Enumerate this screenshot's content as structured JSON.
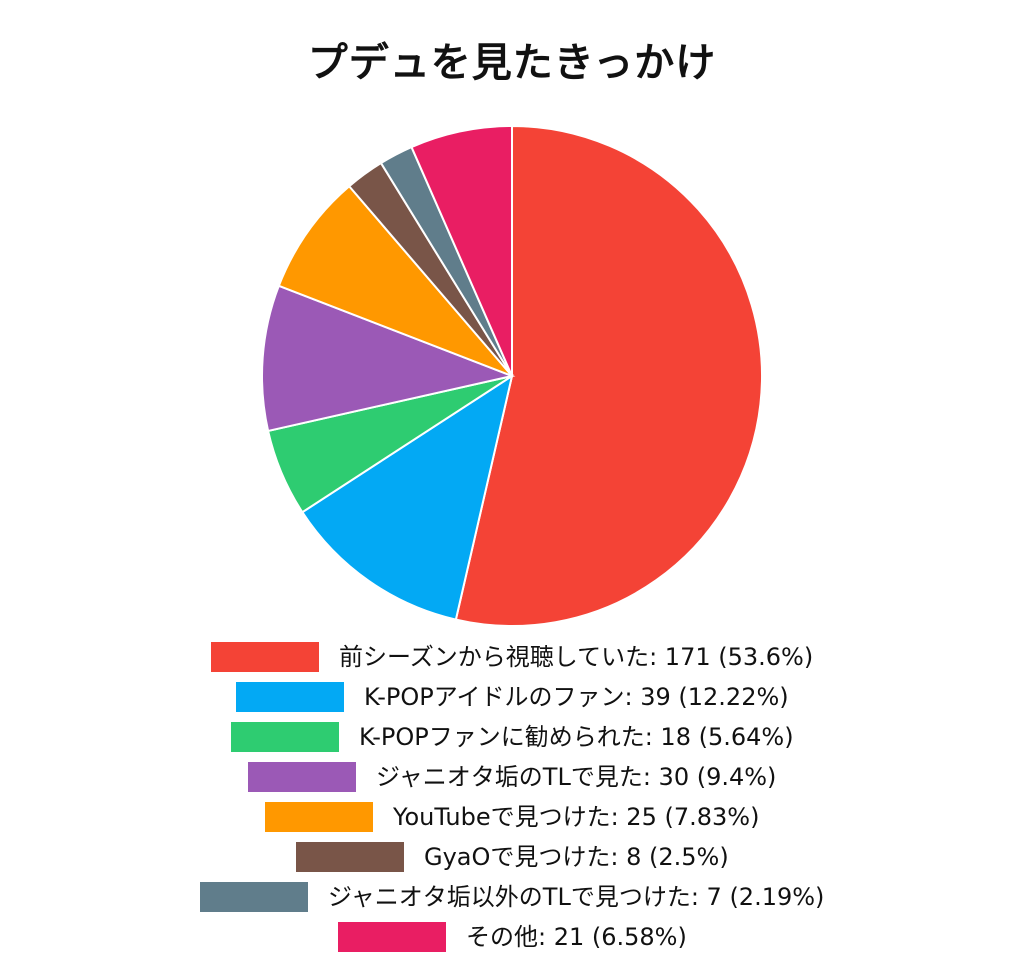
{
  "chart_data": {
    "type": "pie",
    "title": "プデュを見たきっかけ",
    "slices": [
      {
        "label": "前シーズンから視聴していた",
        "value": 171,
        "percent": "53.6%",
        "color": "#f44336",
        "legend_text": "前シーズンから視聴していた: 171 (53.6%)"
      },
      {
        "label": "K-POPアイドルのファン",
        "value": 39,
        "percent": "12.22%",
        "color": "#03a9f4",
        "legend_text": "K-POPアイドルのファン: 39 (12.22%)"
      },
      {
        "label": "K-POPファンに勧められた",
        "value": 18,
        "percent": "5.64%",
        "color": "#2ecc71",
        "legend_text": "K-POPファンに勧められた: 18 (5.64%)"
      },
      {
        "label": "ジャニオタ垢のTLで見た",
        "value": 30,
        "percent": "9.4%",
        "color": "#9b59b6",
        "legend_text": "ジャニオタ垢のTLで見た: 30 (9.4%)"
      },
      {
        "label": "YouTubeで見つけた",
        "value": 25,
        "percent": "7.83%",
        "color": "#ff9800",
        "legend_text": "YouTubeで見つけた: 25 (7.83%)"
      },
      {
        "label": "GyaOで見つけた",
        "value": 8,
        "percent": "2.5%",
        "color": "#795548",
        "legend_text": "GyaOで見つけた: 8 (2.5%)"
      },
      {
        "label": "ジャニオタ垢以外のTLで見つけた",
        "value": 7,
        "percent": "2.19%",
        "color": "#607d8b",
        "legend_text": "ジャニオタ垢以外のTLで見つけた: 7 (2.19%)"
      },
      {
        "label": "その他",
        "value": 21,
        "percent": "6.58%",
        "color": "#e91e63",
        "legend_text": "その他: 21 (6.58%)"
      }
    ],
    "start_angle": "12 o'clock",
    "direction": "clockwise",
    "legend_position": "bottom"
  }
}
